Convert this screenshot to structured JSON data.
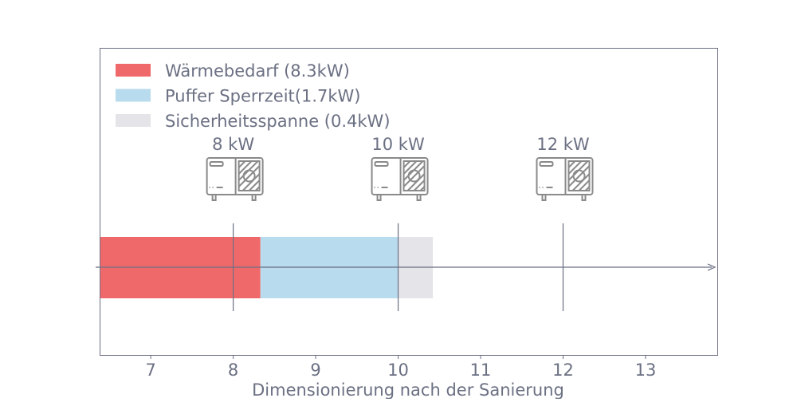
{
  "chart_data": {
    "type": "bar",
    "orientation": "horizontal",
    "stacked": true,
    "xlabel": "Dimensionierung nach der Sanierung",
    "xlim": [
      6.38,
      13.87
    ],
    "xticks": [
      7,
      8,
      9,
      10,
      11,
      12,
      13
    ],
    "grid": false,
    "legend_position": "top-left",
    "series": [
      {
        "name": "Wärmebedarf (8.3kW)",
        "value": 8.33,
        "color": "#f0696a"
      },
      {
        "name": "Puffer Sperrzeit(1.7kW)",
        "value": 1.67,
        "color": "#b8dbee"
      },
      {
        "name": "Sicherheitsspanne (0.4kW)",
        "value": 0.42,
        "color": "#e4e4e9"
      }
    ],
    "annotations": [
      {
        "x": 8,
        "label": "8 kW",
        "icon": "heat-pump-icon"
      },
      {
        "x": 10,
        "label": "10 kW",
        "icon": "heat-pump-icon"
      },
      {
        "x": 12,
        "label": "12 kW",
        "icon": "heat-pump-icon"
      }
    ],
    "axis_color": "#6b7083"
  }
}
